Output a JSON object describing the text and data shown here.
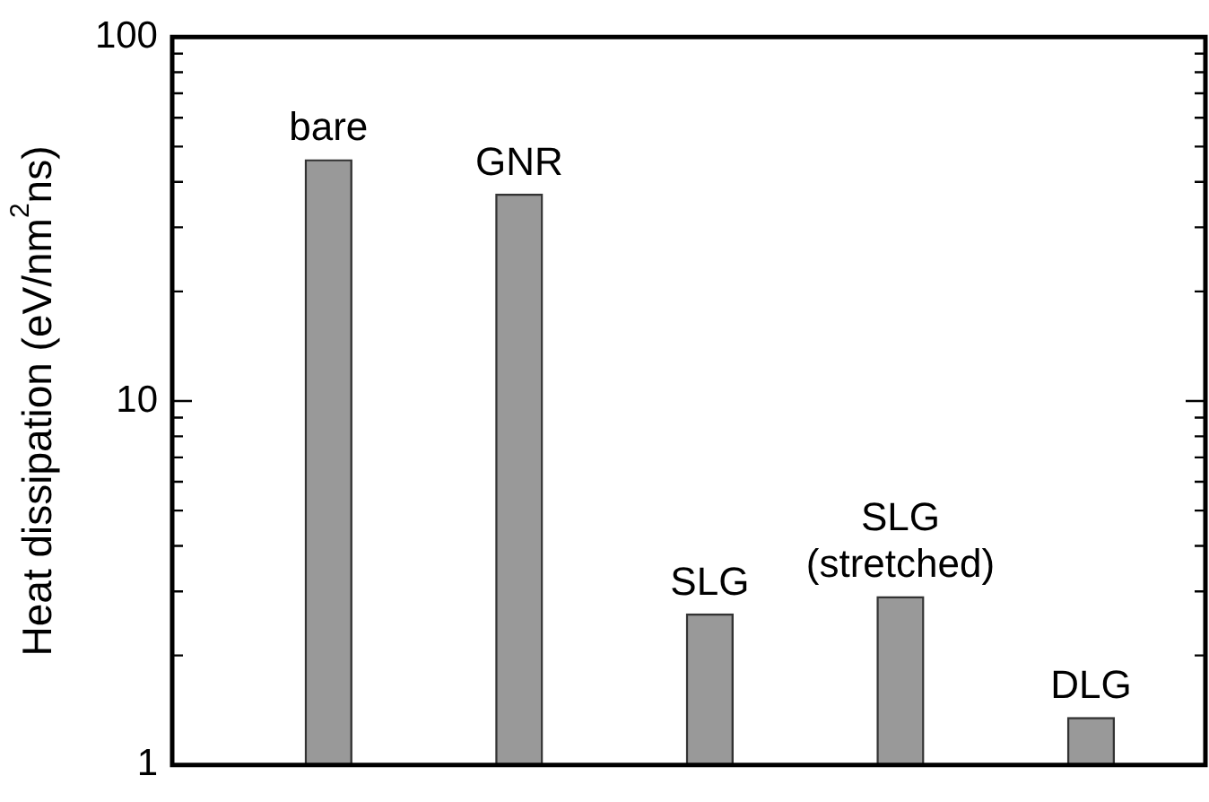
{
  "chart_data": {
    "type": "bar",
    "ylabel": "Heat dissipation (eV/nm$^{2}$ns)",
    "categories": [
      "bare",
      "GNR",
      "SLG",
      "SLG\n(stretched)",
      "DLG"
    ],
    "values": [
      46,
      37,
      2.6,
      2.9,
      1.35
    ],
    "color": "#999999",
    "log": true,
    "ylim": [
      1,
      100
    ],
    "yticks": [
      1,
      {
        "value": 2,
        "label": null
      },
      {
        "value": 3,
        "label": null
      },
      {
        "value": 4,
        "label": null
      },
      {
        "value": 5,
        "label": null
      },
      {
        "value": 6,
        "label": null
      },
      {
        "value": 7,
        "label": null
      },
      {
        "value": 8,
        "label": null
      },
      {
        "value": 9,
        "label": null
      },
      10,
      {
        "value": 20,
        "label": null
      },
      {
        "value": 30,
        "label": null
      },
      {
        "value": 40,
        "label": null
      },
      {
        "value": 50,
        "label": null
      },
      {
        "value": 60,
        "label": null
      },
      {
        "value": 70,
        "label": null
      },
      {
        "value": 80,
        "label": null
      },
      {
        "value": 90,
        "label": null
      },
      100
    ],
    "tick_labels": "y"
  }
}
